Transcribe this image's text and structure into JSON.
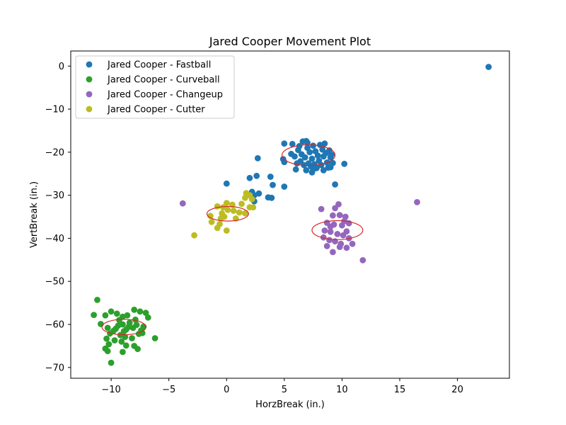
{
  "chart_data": {
    "type": "scatter",
    "title": "Jared Cooper Movement Plot",
    "xlabel": "HorzBreak (in.)",
    "ylabel": "VertBreak (in.)",
    "xlim": [
      -13.5,
      24.5
    ],
    "ylim": [
      -72.5,
      3.5
    ],
    "xticks": [
      -10,
      -5,
      0,
      5,
      10,
      15,
      20
    ],
    "yticks": [
      0,
      -10,
      -20,
      -30,
      -40,
      -50,
      -60,
      -70
    ],
    "grid": false,
    "legend_position": "top-left",
    "series": [
      {
        "name": "Jared Cooper - Fastball",
        "color": "#1f77b4",
        "points": [
          [
            22.7,
            -0.2
          ],
          [
            0.0,
            -27.3
          ],
          [
            2.0,
            -26.0
          ],
          [
            2.6,
            -25.5
          ],
          [
            3.8,
            -25.7
          ],
          [
            4.0,
            -27.6
          ],
          [
            2.2,
            -29.2
          ],
          [
            2.4,
            -30.0
          ],
          [
            2.8,
            -29.6
          ],
          [
            3.6,
            -30.5
          ],
          [
            3.9,
            -30.6
          ],
          [
            2.4,
            -31.4
          ],
          [
            2.7,
            -21.4
          ],
          [
            5.0,
            -28.0
          ],
          [
            4.9,
            -21.6
          ],
          [
            5.0,
            -22.3
          ],
          [
            5.0,
            -18.0
          ],
          [
            5.7,
            -18.1
          ],
          [
            6.0,
            -24.0
          ],
          [
            6.6,
            -17.5
          ],
          [
            6.9,
            -17.4
          ],
          [
            9.0,
            -23.5
          ],
          [
            10.2,
            -22.7
          ],
          [
            9.4,
            -27.5
          ],
          [
            7.4,
            -24.7
          ],
          [
            8.4,
            -24.2
          ],
          [
            6.2,
            -19.5
          ],
          [
            6.5,
            -20.5
          ],
          [
            6.8,
            -21.2
          ],
          [
            7.0,
            -19.0
          ],
          [
            7.2,
            -20.0
          ],
          [
            7.4,
            -21.5
          ],
          [
            7.5,
            -18.5
          ],
          [
            7.7,
            -19.8
          ],
          [
            7.9,
            -20.8
          ],
          [
            8.0,
            -22.0
          ],
          [
            8.1,
            -18.3
          ],
          [
            8.3,
            -19.4
          ],
          [
            8.4,
            -21.0
          ],
          [
            8.6,
            -20.2
          ],
          [
            8.7,
            -22.4
          ],
          [
            8.9,
            -19.6
          ],
          [
            9.0,
            -21.2
          ],
          [
            9.1,
            -20.6
          ],
          [
            6.4,
            -22.1
          ],
          [
            6.7,
            -23.0
          ],
          [
            7.1,
            -22.6
          ],
          [
            7.3,
            -23.3
          ],
          [
            7.6,
            -22.8
          ],
          [
            7.8,
            -23.7
          ],
          [
            8.2,
            -23.0
          ],
          [
            5.6,
            -20.4
          ],
          [
            5.9,
            -21.0
          ],
          [
            6.1,
            -22.6
          ],
          [
            8.5,
            -18.0
          ],
          [
            7.0,
            -17.8
          ],
          [
            6.3,
            -18.6
          ],
          [
            9.2,
            -22.5
          ],
          [
            8.8,
            -23.6
          ],
          [
            7.5,
            -24.0
          ],
          [
            6.9,
            -24.2
          ]
        ]
      },
      {
        "name": "Jared Cooper - Curveball",
        "color": "#2ca02c",
        "points": [
          [
            -11.2,
            -54.3
          ],
          [
            -11.5,
            -57.8
          ],
          [
            -10.5,
            -57.9
          ],
          [
            -10.0,
            -57.0
          ],
          [
            -10.9,
            -59.9
          ],
          [
            -9.5,
            -57.5
          ],
          [
            -9.0,
            -58.2
          ],
          [
            -8.6,
            -57.9
          ],
          [
            -8.0,
            -56.6
          ],
          [
            -7.5,
            -57.0
          ],
          [
            -7.0,
            -57.3
          ],
          [
            -6.8,
            -58.4
          ],
          [
            -10.3,
            -60.8
          ],
          [
            -9.8,
            -61.5
          ],
          [
            -9.4,
            -60.3
          ],
          [
            -9.0,
            -60.0
          ],
          [
            -8.7,
            -61.2
          ],
          [
            -8.4,
            -59.6
          ],
          [
            -8.1,
            -60.8
          ],
          [
            -7.8,
            -60.1
          ],
          [
            -7.4,
            -61.4
          ],
          [
            -7.2,
            -60.5
          ],
          [
            -7.3,
            -62.0
          ],
          [
            -6.2,
            -63.2
          ],
          [
            -9.2,
            -62.5
          ],
          [
            -8.8,
            -62.9
          ],
          [
            -8.2,
            -63.2
          ],
          [
            -7.6,
            -62.2
          ],
          [
            -10.4,
            -63.3
          ],
          [
            -9.7,
            -63.7
          ],
          [
            -9.1,
            -64.0
          ],
          [
            -10.2,
            -64.6
          ],
          [
            -10.5,
            -65.6
          ],
          [
            -10.3,
            -66.2
          ],
          [
            -8.7,
            -64.9
          ],
          [
            -8.0,
            -65.0
          ],
          [
            -7.7,
            -65.7
          ],
          [
            -9.0,
            -66.4
          ],
          [
            -10.0,
            -68.9
          ],
          [
            -9.6,
            -61.0
          ],
          [
            -8.9,
            -61.6
          ],
          [
            -8.5,
            -60.6
          ],
          [
            -9.3,
            -59.0
          ],
          [
            -7.9,
            -58.9
          ],
          [
            -10.1,
            -62.1
          ]
        ]
      },
      {
        "name": "Jared Cooper - Changeup",
        "color": "#9467bd",
        "points": [
          [
            -3.8,
            -31.9
          ],
          [
            16.5,
            -31.6
          ],
          [
            11.8,
            -45.1
          ],
          [
            8.2,
            -33.2
          ],
          [
            9.4,
            -33.0
          ],
          [
            9.7,
            -32.1
          ],
          [
            9.2,
            -34.7
          ],
          [
            9.8,
            -34.6
          ],
          [
            10.3,
            -35.0
          ],
          [
            10.6,
            -36.5
          ],
          [
            8.7,
            -36.4
          ],
          [
            9.3,
            -36.8
          ],
          [
            10.0,
            -37.0
          ],
          [
            10.4,
            -38.4
          ],
          [
            8.5,
            -38.2
          ],
          [
            9.0,
            -38.5
          ],
          [
            9.6,
            -39.0
          ],
          [
            10.1,
            -39.3
          ],
          [
            10.6,
            -40.0
          ],
          [
            8.4,
            -39.8
          ],
          [
            8.9,
            -40.4
          ],
          [
            9.4,
            -40.7
          ],
          [
            9.9,
            -41.3
          ],
          [
            10.4,
            -42.2
          ],
          [
            8.7,
            -41.8
          ],
          [
            9.2,
            -43.2
          ],
          [
            9.8,
            -42.0
          ],
          [
            10.9,
            -41.3
          ],
          [
            9.0,
            -37.3
          ],
          [
            10.2,
            -36.0
          ]
        ]
      },
      {
        "name": "Jared Cooper - Cutter",
        "color": "#bcbd22",
        "points": [
          [
            -2.8,
            -39.3
          ],
          [
            -1.4,
            -34.8
          ],
          [
            -1.3,
            -36.2
          ],
          [
            -0.8,
            -37.6
          ],
          [
            -0.6,
            -36.7
          ],
          [
            -0.5,
            -35.4
          ],
          [
            -0.4,
            -34.2
          ],
          [
            -0.3,
            -32.8
          ],
          [
            0.0,
            -31.8
          ],
          [
            0.1,
            -33.4
          ],
          [
            0.5,
            -32.2
          ],
          [
            0.6,
            -33.6
          ],
          [
            0.8,
            -35.4
          ],
          [
            1.1,
            -34.0
          ],
          [
            1.3,
            -32.0
          ],
          [
            1.6,
            -34.2
          ],
          [
            1.6,
            -30.6
          ],
          [
            1.7,
            -29.5
          ],
          [
            2.0,
            -30.0
          ],
          [
            2.2,
            -30.9
          ],
          [
            2.0,
            -32.8
          ],
          [
            2.3,
            -32.8
          ],
          [
            0.0,
            -38.2
          ],
          [
            -0.2,
            -35.0
          ],
          [
            -0.8,
            -32.6
          ]
        ]
      }
    ],
    "ellipses": [
      {
        "series": "Jared Cooper - Fastball",
        "cx": 7.1,
        "cy": -20.7,
        "rx": 2.3,
        "ry": 2.4,
        "color": "#d62728"
      },
      {
        "series": "Jared Cooper - Curveball",
        "cx": -8.9,
        "cy": -60.6,
        "rx": 1.9,
        "ry": 1.8,
        "color": "#d62728"
      },
      {
        "series": "Jared Cooper - Changeup",
        "cx": 9.6,
        "cy": -38.1,
        "rx": 2.2,
        "ry": 2.2,
        "color": "#d62728"
      },
      {
        "series": "Jared Cooper - Cutter",
        "cx": 0.1,
        "cy": -34.3,
        "rx": 1.8,
        "ry": 1.7,
        "color": "#d62728"
      }
    ]
  }
}
